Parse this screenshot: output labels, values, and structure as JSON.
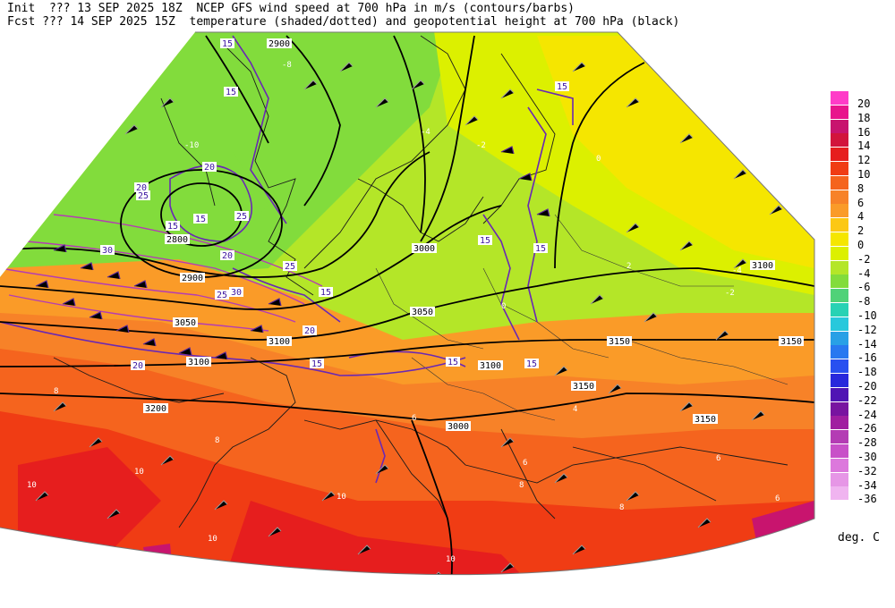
{
  "header": {
    "line1_left": "Init  ??? 13 SEP 2025 18Z",
    "line1_right": "NCEP GFS wind speed at 700 hPa in m/s (contours/barbs)",
    "line2_left": "Fcst ??? 14 SEP 2025 15Z",
    "line2_right": "temperature (shaded/dotted) and geopotential height at 700 hPa (black)"
  },
  "colorbar": {
    "labels": [
      "20",
      "18",
      "16",
      "14",
      "12",
      "10",
      "8",
      "6",
      "4",
      "2",
      "0",
      "-2",
      "-4",
      "-6",
      "-8",
      "-10",
      "-12",
      "-14",
      "-16",
      "-18",
      "-20",
      "-22",
      "-24",
      "-26",
      "-28",
      "-30",
      "-32",
      "-34",
      "-36"
    ],
    "colors": [
      "#ff3cc8",
      "#e8148c",
      "#c8146e",
      "#d2143c",
      "#e61e1e",
      "#f03c14",
      "#f5641e",
      "#f78228",
      "#fa9b28",
      "#fcc814",
      "#f5e600",
      "#dcf000",
      "#b4e628",
      "#82dc3c",
      "#50d278",
      "#28d2b4",
      "#28c8dc",
      "#28a0e6",
      "#2878f0",
      "#2850f0",
      "#2828dc",
      "#5014b4",
      "#7814a0",
      "#a01ea0",
      "#b43cb4",
      "#c850c8",
      "#dc78dc",
      "#e696e6",
      "#f0b4f0"
    ]
  },
  "units": "deg. C",
  "map": {
    "height_labels": [
      "2900",
      "2800",
      "3000",
      "3050",
      "3050",
      "3100",
      "3100",
      "3150",
      "3150",
      "3150",
      "3150",
      "3200",
      "3100",
      "3000",
      "2900",
      "3100"
    ],
    "wind_labels": [
      "15",
      "15",
      "20",
      "20",
      "25",
      "25",
      "30",
      "25",
      "20",
      "15",
      "15",
      "20",
      "15",
      "15",
      "15",
      "15",
      "15",
      "15",
      "25",
      "30",
      "15",
      "20"
    ],
    "temp_labels": [
      "-10",
      "-8",
      "-4",
      "-2",
      "0",
      "-4",
      "-2",
      "0",
      "2",
      "4",
      "6",
      "8",
      "8",
      "6",
      "10",
      "10",
      "10",
      "10",
      "10",
      "10",
      "8",
      "8",
      "6",
      "6"
    ]
  }
}
